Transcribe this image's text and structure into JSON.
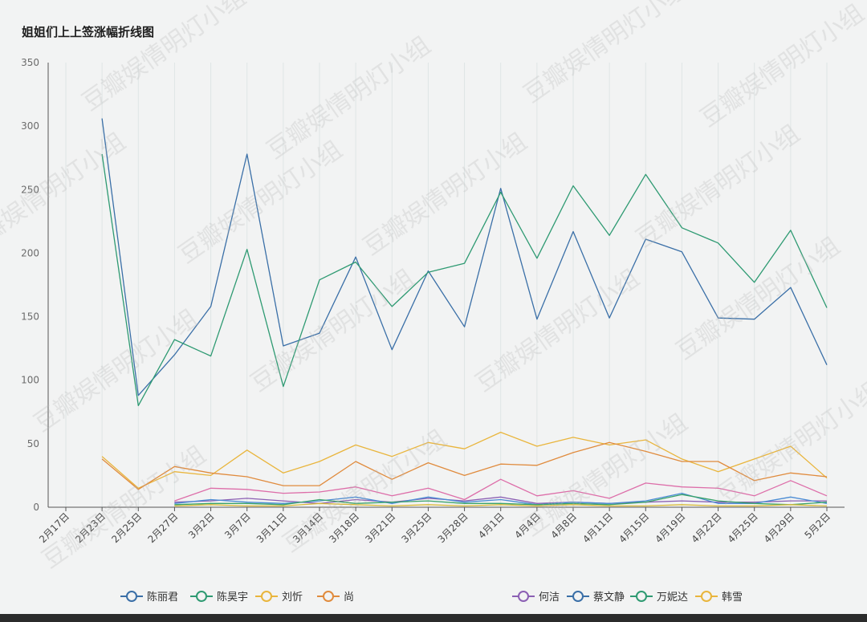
{
  "title": "姐姐们上上签涨幅折线图",
  "colors": {
    "panel": "#f2f3f3",
    "grid": "#dfe5e5",
    "axis": "#555555"
  },
  "chart_data": {
    "type": "line",
    "title": "姐姐们上上签涨幅折线图",
    "ylim": [
      0,
      350
    ],
    "y_ticks": [
      0,
      50,
      100,
      150,
      200,
      250,
      300,
      350
    ],
    "grid": true,
    "legend_position": "bottom",
    "categories": [
      "2月17日",
      "2月23日",
      "2月25日",
      "2月27日",
      "3月2日",
      "3月7日",
      "3月11日",
      "3月14日",
      "3月18日",
      "3月21日",
      "3月25日",
      "3月28日",
      "4月1日",
      "4月4日",
      "4月8日",
      "4月11日",
      "4月15日",
      "4月19日",
      "4月22日",
      "4月25日",
      "4月29日",
      "5月2日"
    ],
    "series": [
      {
        "name": "陈丽君",
        "color": "#3a6fa7",
        "values": [
          null,
          306,
          88,
          120,
          158,
          278,
          127,
          137,
          197,
          124,
          186,
          142,
          251,
          148,
          217,
          149,
          211,
          201,
          149,
          148,
          173,
          112
        ]
      },
      {
        "name": "陈昊宇",
        "color": "#2e9a72",
        "values": [
          null,
          278,
          80,
          132,
          119,
          203,
          95,
          179,
          193,
          158,
          185,
          192,
          248,
          196,
          253,
          214,
          262,
          220,
          208,
          177,
          218,
          157
        ]
      },
      {
        "name": "刘忻",
        "color": "#e9b53c",
        "values": [
          null,
          40,
          15,
          28,
          25,
          45,
          27,
          36,
          49,
          40,
          51,
          46,
          59,
          48,
          55,
          49,
          53,
          38,
          28,
          38,
          48,
          23
        ]
      },
      {
        "name": "尚",
        "color": "#e08b3d",
        "values": [
          null,
          38,
          14,
          32,
          27,
          24,
          17,
          17,
          36,
          22,
          35,
          25,
          34,
          33,
          43,
          51,
          44,
          36,
          36,
          21,
          27,
          24
        ]
      },
      {
        "name": "何洁",
        "color": "#8b5fb3",
        "values": [
          null,
          null,
          null,
          4,
          5,
          7,
          5,
          3,
          6,
          4,
          7,
          5,
          8,
          3,
          4,
          3,
          4,
          5,
          4,
          4,
          5,
          5
        ]
      },
      {
        "name": "蔡文静",
        "color": "#4a8bd4",
        "values": [
          null,
          null,
          null,
          3,
          6,
          4,
          3,
          5,
          8,
          3,
          8,
          4,
          6,
          2,
          4,
          3,
          5,
          11,
          3,
          3,
          8,
          3
        ]
      },
      {
        "name": "万妮达",
        "color": "#3aa36a",
        "values": [
          null,
          null,
          null,
          2,
          3,
          3,
          2,
          6,
          3,
          4,
          5,
          3,
          3,
          2,
          3,
          2,
          4,
          10,
          5,
          3,
          2,
          4
        ]
      },
      {
        "name": "韩雪",
        "color": "#d9ba3a",
        "values": [
          null,
          null,
          null,
          1,
          2,
          1,
          1,
          3,
          2,
          1,
          2,
          1,
          2,
          1,
          2,
          1,
          1,
          2,
          1,
          1,
          2,
          1
        ]
      },
      {
        "name": "",
        "color": "#dd6ea9",
        "values": [
          null,
          null,
          null,
          5,
          15,
          14,
          11,
          12,
          16,
          9,
          15,
          6,
          22,
          9,
          13,
          7,
          19,
          16,
          15,
          9,
          21,
          9
        ]
      }
    ]
  },
  "legend": [
    {
      "name": "陈丽君",
      "color": "#3a6fa7"
    },
    {
      "name": "陈昊宇",
      "color": "#2e9a72"
    },
    {
      "name": "刘忻",
      "color": "#e9b53c"
    },
    {
      "name": "尚",
      "color": "#e08b3d"
    },
    {
      "name": "何洁",
      "color": "#8b5fb3"
    },
    {
      "name": "蔡文静",
      "color": "#3a6fa7"
    },
    {
      "name": "万妮达",
      "color": "#2e9a72"
    },
    {
      "name": "韩雪",
      "color": "#e9b53c"
    }
  ],
  "watermark": "豆瓣娱情明灯小组"
}
